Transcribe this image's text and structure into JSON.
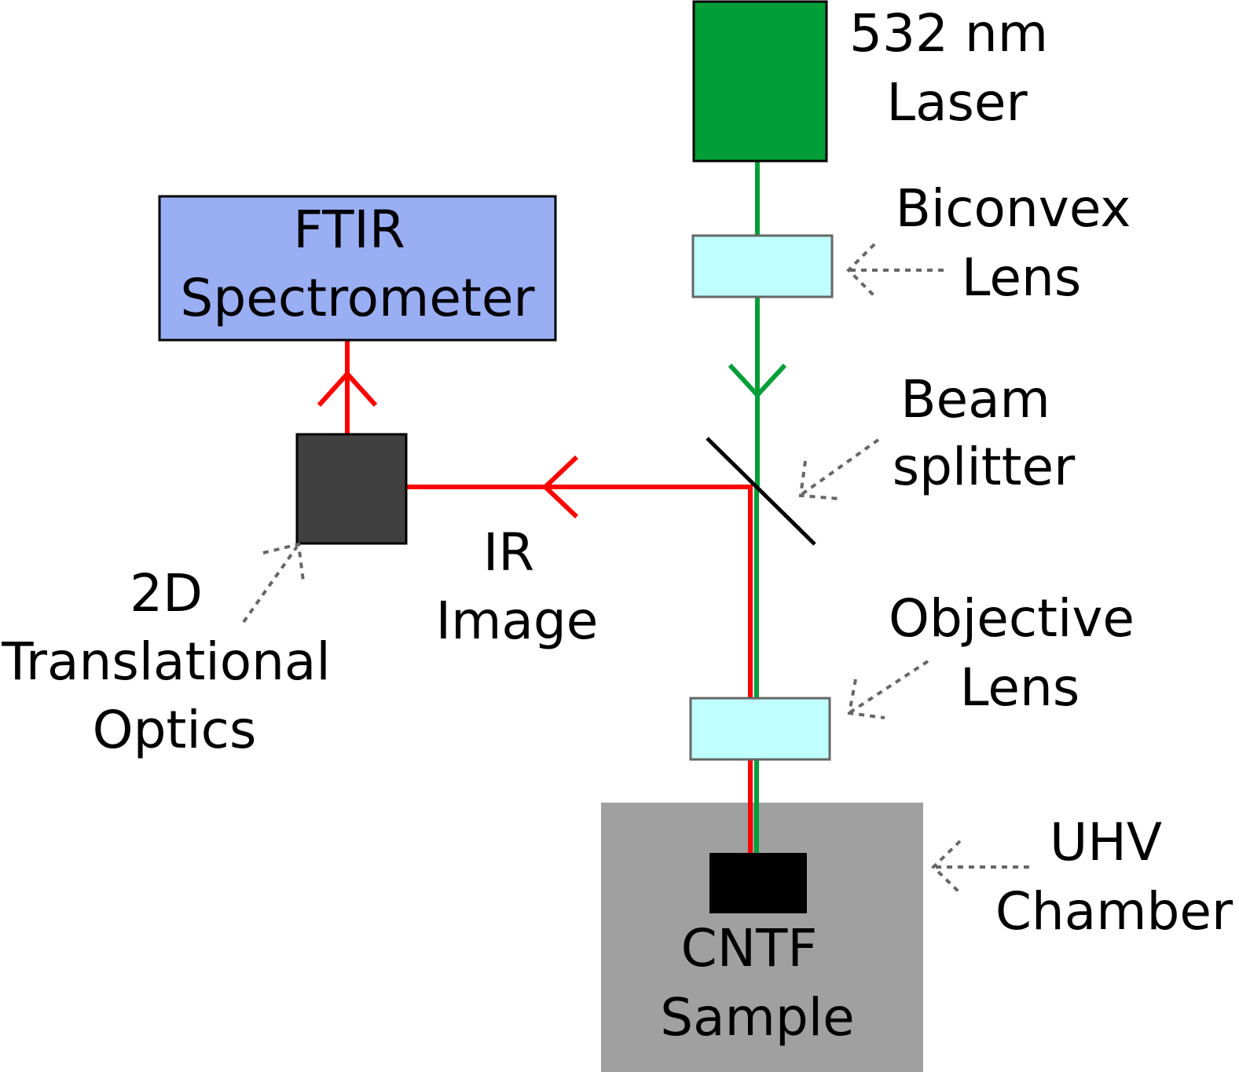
{
  "colors": {
    "laser_green": "#009e38",
    "ir_red": "#ff0000",
    "lens_fill": "#bfffff",
    "spectrometer_fill": "#9aaef4",
    "chamber_fill": "#a0a0a0",
    "optics_fill": "#404040",
    "sample_fill": "#000000",
    "pointer_gray": "#666666"
  },
  "labels": {
    "laser": [
      "532 nm",
      "Laser"
    ],
    "biconvex": [
      "Biconvex",
      "Lens"
    ],
    "beam_splitter": [
      "Beam",
      "splitter"
    ],
    "objective": [
      "Objective",
      "Lens"
    ],
    "uhv": [
      "UHV",
      "Chamber"
    ],
    "sample": [
      "CNTF",
      "Sample"
    ],
    "spectrometer": [
      "FTIR",
      "Spectrometer"
    ],
    "ir_image": [
      "IR",
      "Image"
    ],
    "translational": [
      "2D",
      "Translational",
      "Optics"
    ]
  }
}
